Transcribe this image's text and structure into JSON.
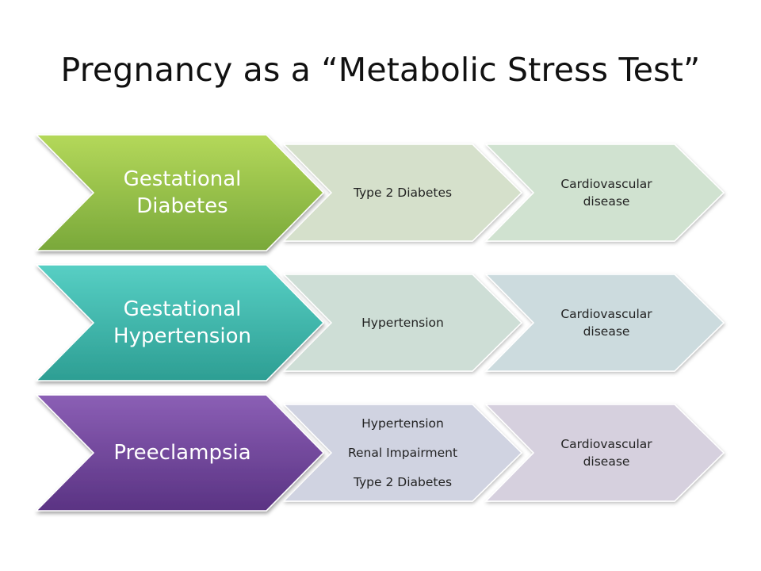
{
  "slide": {
    "title": "Pregnancy as a “Metabolic Stress Test”"
  },
  "rows": [
    {
      "condition": [
        "Gestational",
        "Diabetes"
      ],
      "outcome": [
        "Type 2 Diabetes"
      ],
      "long_term": [
        "Cardiovascular",
        "disease"
      ],
      "colors": {
        "main_top": "#b4d85a",
        "main_bottom": "#79a83a",
        "outcome_fill": "#d5e0cb",
        "longterm_fill": "#d0e2d0"
      }
    },
    {
      "condition": [
        "Gestational",
        "Hypertension"
      ],
      "outcome": [
        "Hypertension"
      ],
      "long_term": [
        "Cardiovascular",
        "disease"
      ],
      "colors": {
        "main_top": "#57cfc4",
        "main_bottom": "#2d9e93",
        "outcome_fill": "#ceded6",
        "longterm_fill": "#ccdbde"
      }
    },
    {
      "condition": [
        "Preeclampsia"
      ],
      "outcome": [
        "Hypertension",
        "Renal Impairment",
        "Type 2 Diabetes"
      ],
      "long_term": [
        "Cardiovascular",
        "disease"
      ],
      "colors": {
        "main_top": "#8b5fb5",
        "main_bottom": "#5a3383",
        "outcome_fill": "#d0d3e1",
        "longterm_fill": "#d6d0de"
      }
    }
  ]
}
